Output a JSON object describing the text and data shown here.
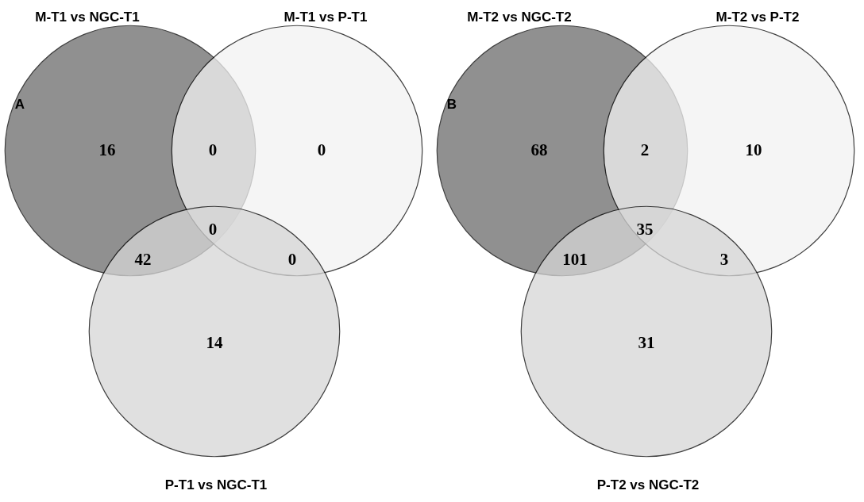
{
  "chart_data": [
    {
      "type": "other",
      "categories": [
        null,
        null,
        null,
        null,
        null,
        null,
        null
      ],
      "values": [
        16,
        0,
        0,
        0,
        42,
        0,
        14
      ],
      "data_labels": true,
      "annotations": [
        "A",
        "M-T1 vs NGC-T1",
        "M-T1 vs P-T1",
        "P-T1 vs NGC-T1"
      ]
    },
    {
      "type": "other",
      "categories": [
        null,
        null,
        null,
        null,
        null,
        null,
        null
      ],
      "values": [
        68,
        2,
        10,
        35,
        101,
        3,
        31
      ],
      "data_labels": true,
      "annotations": [
        "B",
        "M-T2 vs NGC-T2",
        "M-T2 vs P-T2",
        "P-T2 vs NGC-T2"
      ]
    }
  ]
}
